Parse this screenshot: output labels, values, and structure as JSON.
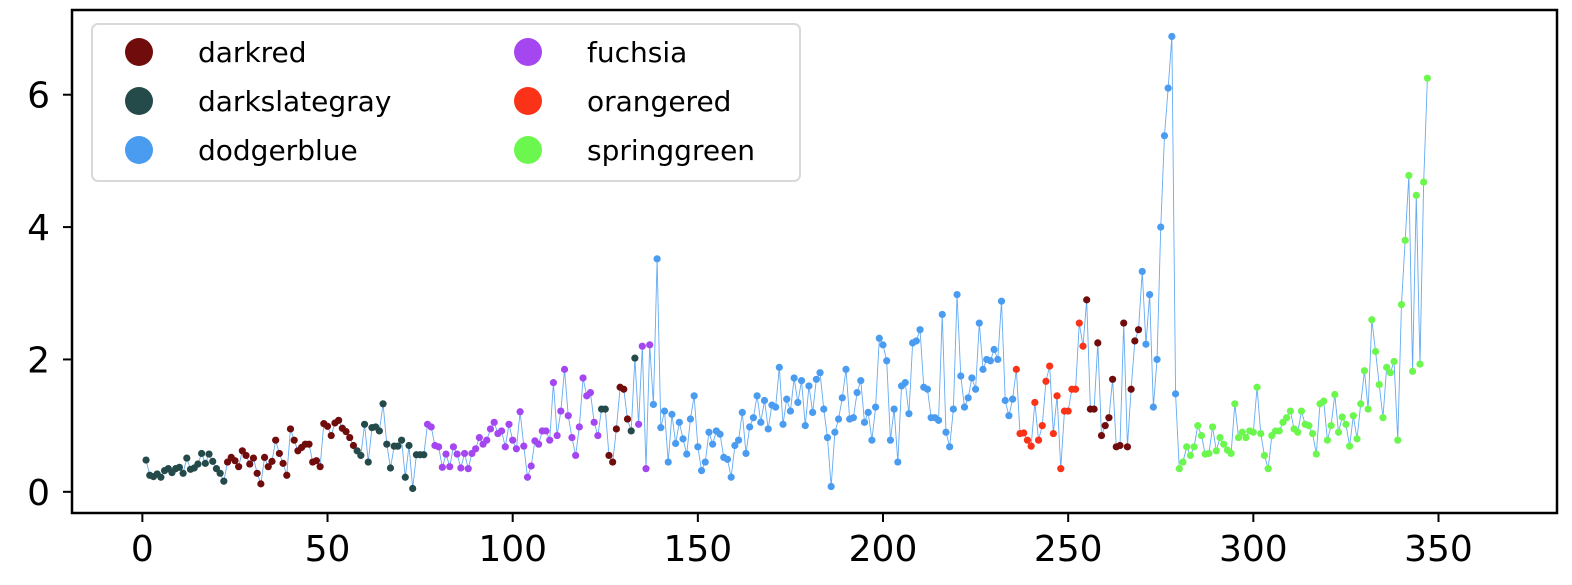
{
  "chart_data": {
    "type": "scatter",
    "connected_line": true,
    "line_color": "#4a9cf0",
    "title": "",
    "xlabel": "",
    "ylabel": "",
    "xlim": [
      -19,
      382
    ],
    "ylim": [
      -0.32,
      7.28
    ],
    "xticks": [
      0,
      50,
      100,
      150,
      200,
      250,
      300,
      350
    ],
    "yticks": [
      0,
      2,
      4,
      6
    ],
    "grid": false,
    "legend": {
      "placement": "top-left",
      "columns": 2,
      "entries": [
        {
          "label": "darkred",
          "color": "#700c0c"
        },
        {
          "label": "darkslategray",
          "color": "#254a4a"
        },
        {
          "label": "dodgerblue",
          "color": "#4a9cf0"
        },
        {
          "label": "fuchsia",
          "color": "#a447f0"
        },
        {
          "label": "orangered",
          "color": "#fa3218"
        },
        {
          "label": "springgreen",
          "color": "#6cf74f"
        }
      ]
    },
    "series": [
      {
        "name": "darkslategray",
        "color": "#254a4a",
        "start_index": 1,
        "values": [
          0.48,
          0.25,
          0.23,
          0.27,
          0.22,
          0.32,
          0.35,
          0.29,
          0.35,
          0.37,
          0.28,
          0.51,
          0.34,
          0.36,
          0.42,
          0.58,
          0.43,
          0.57,
          0.46,
          0.35,
          0.28,
          0.16
        ]
      },
      {
        "name": "darkred",
        "color": "#700c0c",
        "start_index": 23,
        "values": [
          0.45,
          0.52,
          0.47,
          0.38,
          0.62,
          0.55,
          0.42,
          0.51,
          0.28,
          0.12,
          0.52,
          0.38,
          0.46,
          0.78,
          0.58,
          0.43,
          0.25,
          0.95,
          0.78,
          0.62,
          0.67,
          0.72,
          0.72,
          0.45,
          0.47,
          0.38,
          1.03,
          0.99,
          0.85,
          1.04,
          1.08,
          0.96,
          0.91,
          0.82,
          0.7
        ]
      },
      {
        "name": "darkslategray",
        "color": "#254a4a",
        "start_index": 58,
        "values": [
          0.62,
          0.55,
          1.02,
          0.45,
          0.97,
          0.98,
          0.92,
          1.33,
          0.72,
          0.36,
          0.69,
          0.69,
          0.78,
          0.22,
          0.7,
          0.05,
          0.56,
          0.56,
          0.56
        ]
      },
      {
        "name": "fuchsia",
        "color": "#a447f0",
        "start_index": 77,
        "values": [
          1.02,
          0.98,
          0.7,
          0.68,
          0.37,
          0.57,
          0.38,
          0.68,
          0.57,
          0.36,
          0.58,
          0.35,
          0.58,
          0.65,
          0.82,
          0.72,
          0.78,
          0.95,
          1.05,
          0.88,
          0.92,
          0.68,
          1.02,
          0.78,
          0.65,
          1.21,
          0.69,
          0.22,
          0.39,
          0.77,
          0.72,
          0.92,
          0.92,
          0.78,
          1.65,
          0.85,
          1.22,
          1.85,
          1.15,
          0.82,
          0.55,
          0.98,
          1.72,
          1.45,
          1.5,
          1.05,
          0.85
        ]
      },
      {
        "name": "darkslategray",
        "color": "#254a4a",
        "start_index": 124,
        "values": [
          1.25,
          1.25
        ]
      },
      {
        "name": "darkred",
        "color": "#700c0c",
        "start_index": 126,
        "values": [
          0.55,
          0.45,
          0.95,
          1.58,
          1.55,
          1.1
        ]
      },
      {
        "name": "darkslategray",
        "color": "#254a4a",
        "start_index": 132,
        "values": [
          0.92,
          2.02
        ]
      },
      {
        "name": "fuchsia",
        "color": "#a447f0",
        "start_index": 134,
        "values": [
          1.02,
          2.2,
          0.35,
          2.22
        ]
      },
      {
        "name": "dodgerblue",
        "color": "#4a9cf0",
        "start_index": 138,
        "values": [
          1.32,
          3.52,
          0.97,
          1.22,
          0.45,
          1.17,
          0.73,
          1.05,
          0.8,
          0.57,
          1.1,
          1.45,
          0.68,
          0.32,
          0.45,
          0.9,
          0.72,
          0.92,
          0.87,
          0.52,
          0.49,
          0.22,
          0.7,
          0.78,
          1.2,
          0.58,
          0.98,
          1.12,
          1.45,
          1.05,
          1.38,
          0.95,
          1.31,
          1.28,
          1.88,
          1.02,
          1.4,
          1.22,
          1.72,
          1.35,
          1.68,
          1.0,
          1.6,
          1.2,
          1.7,
          1.8,
          1.25,
          0.82,
          0.08,
          0.9,
          1.1,
          1.42,
          1.85,
          1.1,
          1.12,
          1.5,
          1.68,
          1.05,
          1.2,
          0.78,
          1.28,
          2.32,
          2.22,
          1.98,
          0.78,
          1.25,
          0.45,
          1.6,
          1.65,
          1.18,
          2.25,
          2.28,
          2.45,
          1.58,
          1.55,
          1.12,
          1.12,
          1.08,
          2.68,
          0.9,
          0.68,
          1.25,
          2.98,
          1.75,
          1.28,
          1.42,
          1.72,
          1.55,
          2.55,
          1.85,
          2.0,
          1.98,
          2.15,
          2.0,
          2.88,
          1.38,
          1.15,
          1.4
        ]
      },
      {
        "name": "orangered",
        "color": "#fa3218",
        "start_index": 236,
        "values": [
          1.85,
          0.88,
          0.89,
          0.78,
          0.69,
          1.35,
          0.78,
          1.0,
          1.67,
          1.9,
          0.88,
          1.45,
          0.35,
          1.22,
          1.22,
          1.55,
          1.55,
          2.55,
          2.2
        ]
      },
      {
        "name": "darkred",
        "color": "#700c0c",
        "start_index": 255,
        "values": [
          2.9,
          1.25,
          1.25,
          2.25,
          0.85,
          1.0,
          1.12,
          1.7,
          0.68,
          0.7,
          2.55,
          0.68,
          1.55,
          2.28,
          2.45
        ]
      },
      {
        "name": "dodgerblue",
        "color": "#4a9cf0",
        "start_index": 270,
        "values": [
          3.33,
          2.23,
          2.98,
          1.28,
          2.0,
          4.0,
          5.38,
          6.1,
          6.88,
          1.48
        ]
      },
      {
        "name": "springgreen",
        "color": "#6cf74f",
        "start_index": 280,
        "values": [
          0.35,
          0.45,
          0.68,
          0.55,
          0.68,
          1.0,
          0.85,
          0.57,
          0.58,
          0.98,
          0.62,
          0.82,
          0.72,
          0.63,
          0.58,
          1.33,
          0.82,
          0.9,
          0.82,
          0.92,
          0.9,
          1.58,
          0.88,
          0.55,
          0.35,
          0.85,
          0.92,
          0.92,
          1.05,
          1.12,
          1.22,
          0.95,
          0.9,
          1.22,
          1.02,
          1.0,
          0.88,
          0.57,
          1.33,
          1.37,
          0.78,
          1.0,
          1.47,
          0.9,
          1.13,
          1.02,
          0.69,
          1.15,
          0.8,
          1.33,
          1.83,
          1.25,
          2.6,
          2.12,
          1.62,
          1.12,
          1.88,
          1.8,
          1.97,
          0.78,
          2.83,
          3.8,
          4.78,
          1.82,
          4.48,
          1.93,
          4.68,
          6.25
        ]
      }
    ]
  }
}
